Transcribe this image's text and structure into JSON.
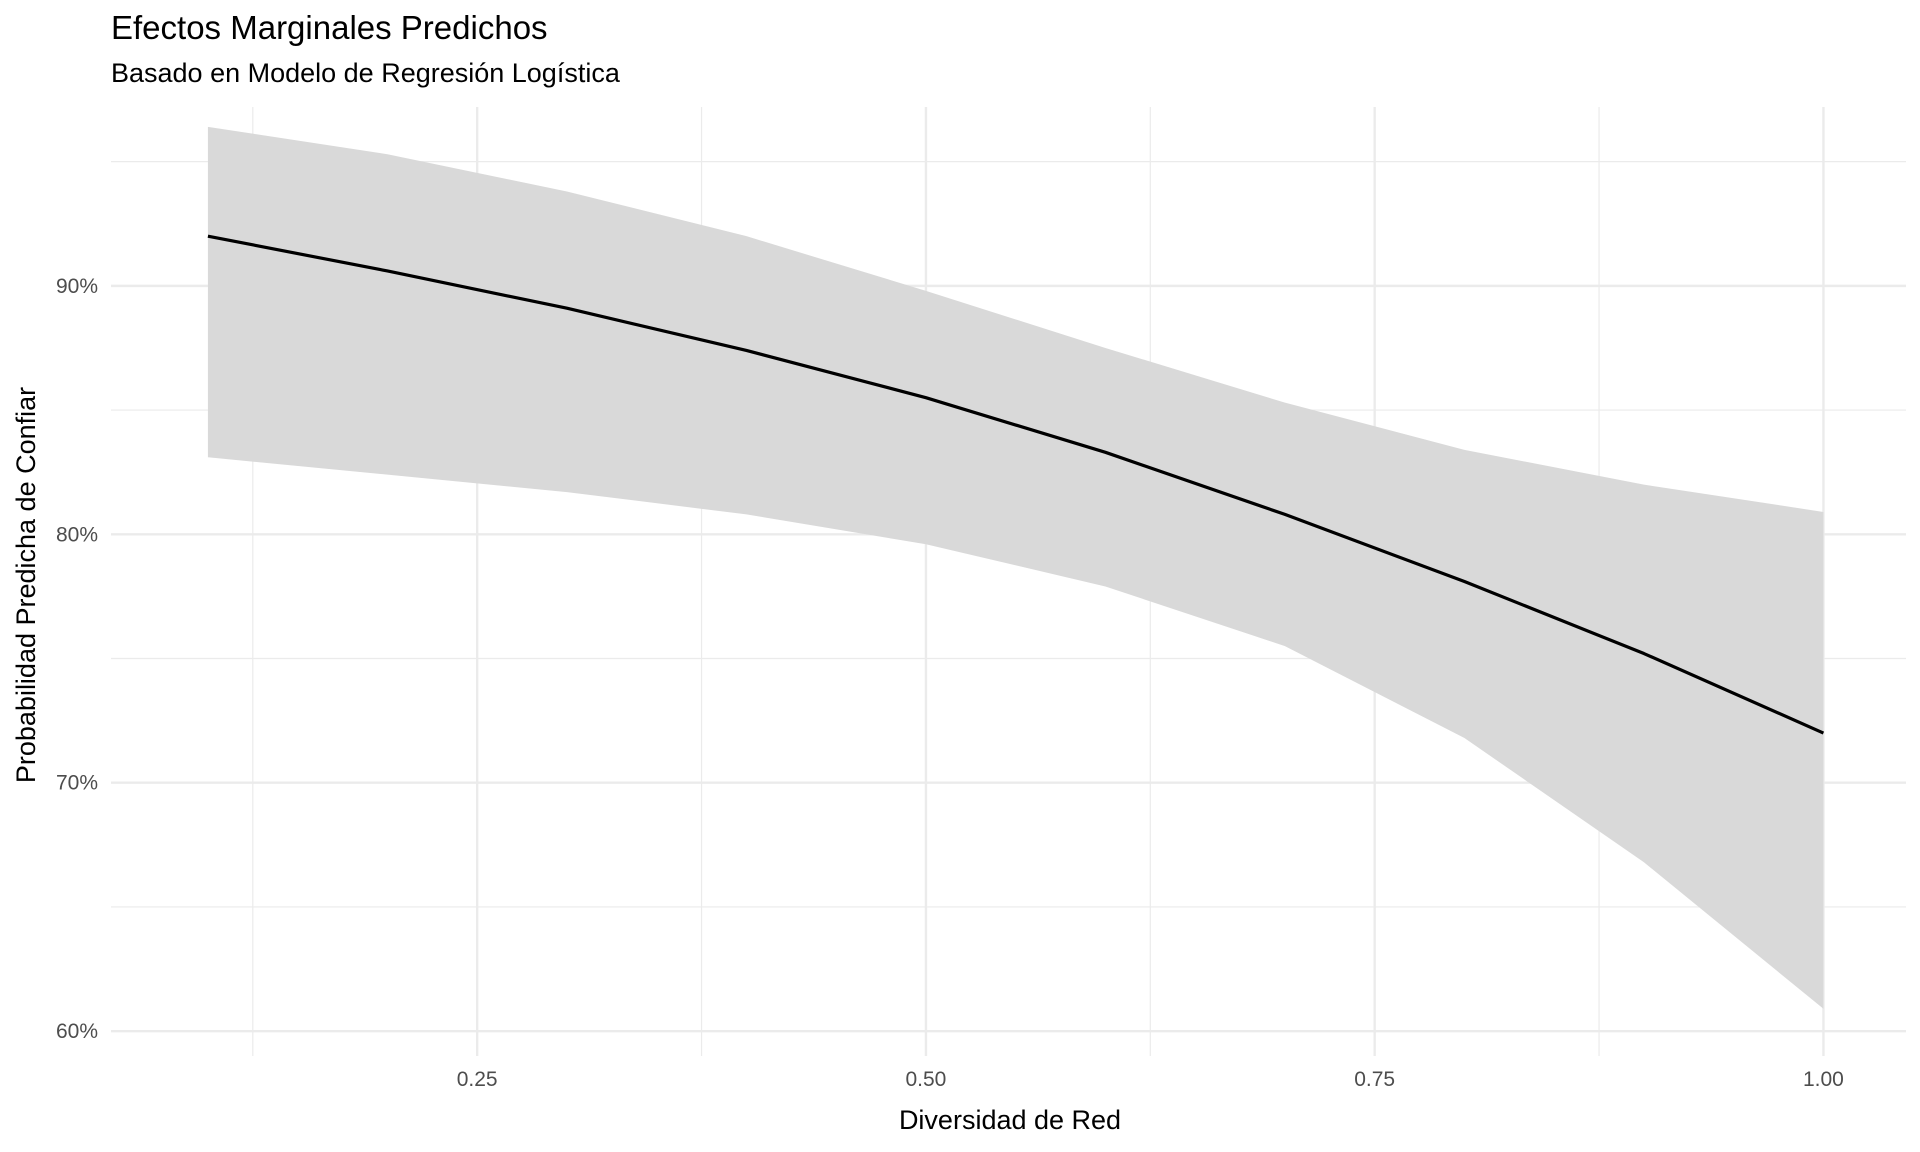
{
  "chart_data": {
    "type": "line",
    "title": "Efectos Marginales Predichos",
    "subtitle": "Basado en Modelo de Regresión Logística",
    "xlabel": "Diversidad de Red",
    "ylabel": "Probabilidad Predicha de Confiar",
    "xlim": [
      0.046,
      1.046
    ],
    "ylim": [
      0.59,
      0.972
    ],
    "x_ticks": [
      0.25,
      0.5,
      0.75,
      1.0
    ],
    "x_tick_labels": [
      "0.25",
      "0.50",
      "0.75",
      "1.00"
    ],
    "x_minor_ticks": [
      0.125,
      0.375,
      0.625,
      0.875
    ],
    "y_ticks": [
      0.6,
      0.7,
      0.8,
      0.9
    ],
    "y_tick_labels": [
      "60%",
      "70%",
      "80%",
      "90%"
    ],
    "y_minor_ticks": [
      0.65,
      0.75,
      0.85,
      0.95
    ],
    "grid": true,
    "x": [
      0.1,
      0.2,
      0.3,
      0.4,
      0.5,
      0.6,
      0.7,
      0.8,
      0.9,
      1.0
    ],
    "series": [
      {
        "values": [
          0.92,
          0.906,
          0.891,
          0.874,
          0.855,
          0.833,
          0.808,
          0.781,
          0.752,
          0.72
        ],
        "lower": [
          0.831,
          0.824,
          0.817,
          0.808,
          0.796,
          0.779,
          0.755,
          0.718,
          0.668,
          0.609
        ],
        "upper": [
          0.964,
          0.953,
          0.938,
          0.92,
          0.898,
          0.875,
          0.853,
          0.834,
          0.82,
          0.809
        ],
        "color": "#000000",
        "band_color": "#d9d9d9"
      }
    ],
    "grid_color": "#ebebeb"
  }
}
